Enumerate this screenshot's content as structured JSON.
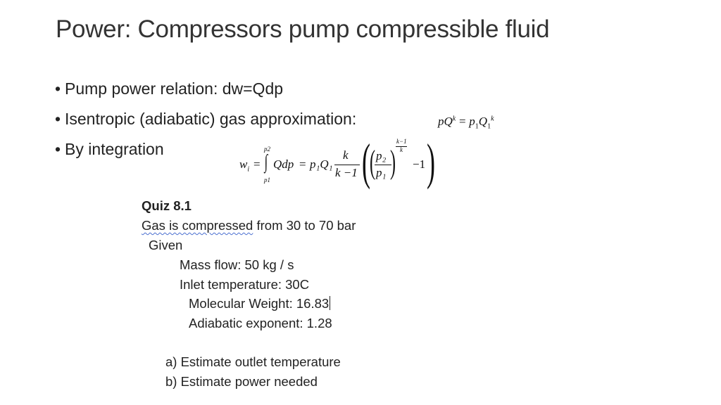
{
  "title": "Power: Compressors  pump compressible fluid",
  "bullets": [
    {
      "text": "Pump power relation: dw=Qdp"
    },
    {
      "text": "Isentropic  (adiabatic) gas approximation:"
    },
    {
      "text": "By integration"
    }
  ],
  "eq1": {
    "lhs": "pQ",
    "lhs_exp": "k",
    "eq": "=",
    "rhs": "p",
    "rhs_sub": "1",
    "rhs_q": "Q",
    "rhs_q_sub": "1",
    "rhs_exp": "k"
  },
  "eq2": {
    "w": "w",
    "w_sub": "i",
    "eq": "=",
    "upper": "p2",
    "lower": "p1",
    "integral": "∫",
    "integrand": "Qdp",
    "eq2": "=",
    "p1Q1": "p₁Q₁",
    "frac_num": "k",
    "frac_den": "k −1",
    "ratio_num": "p₂",
    "ratio_den": "p₁",
    "exp_num": "k−1",
    "exp_den": "k",
    "minus_one": "−1"
  },
  "quiz": {
    "heading": "Quiz 8.1",
    "statement_underlined": "Gas is compressed",
    "statement_rest": " from 30 to 70 bar",
    "given": "Given",
    "items": [
      "Mass flow: 50 kg / s",
      "Inlet temperature: 30C",
      "Molecular Weight: 16.83",
      "Adiabatic exponent: 1.28"
    ],
    "questions": [
      "a)  Estimate outlet temperature",
      "b)  Estimate power needed"
    ]
  }
}
